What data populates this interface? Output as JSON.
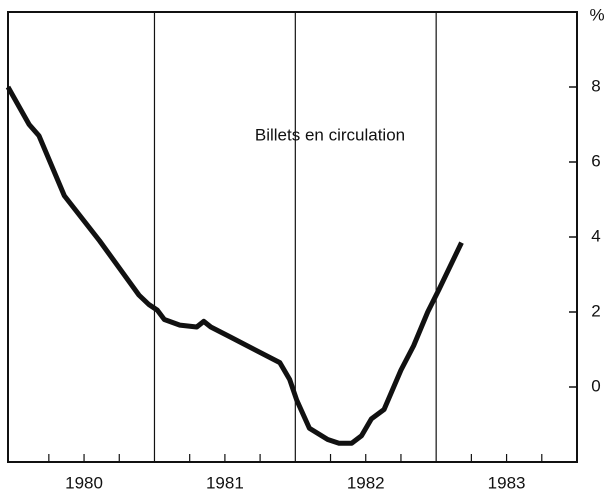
{
  "chart_data": {
    "type": "line",
    "annotation": "Billets en circulation",
    "y_unit": "%",
    "x": [
      1979.96,
      1980.11,
      1980.18,
      1980.36,
      1980.61,
      1980.89,
      1980.96,
      1981.02,
      1981.07,
      1981.18,
      1981.3,
      1981.35,
      1981.4,
      1981.53,
      1981.89,
      1981.96,
      1982.01,
      1982.1,
      1982.23,
      1982.31,
      1982.4,
      1982.47,
      1982.54,
      1982.63,
      1982.75,
      1982.84,
      1982.94,
      1983.02,
      1983.18
    ],
    "values": [
      8.0,
      7.0,
      6.7,
      5.1,
      3.9,
      2.45,
      2.2,
      2.05,
      1.8,
      1.65,
      1.6,
      1.75,
      1.6,
      1.35,
      0.65,
      0.2,
      -0.35,
      -1.1,
      -1.4,
      -1.5,
      -1.5,
      -1.3,
      -0.85,
      -0.6,
      0.45,
      1.1,
      2.0,
      2.6,
      3.85
    ],
    "color": "#111111",
    "xlim": [
      1979.96,
      1984.0
    ],
    "xticks": [
      {
        "value": 1980.5,
        "label": "1980"
      },
      {
        "value": 1981.5,
        "label": "1981"
      },
      {
        "value": 1982.5,
        "label": "1982"
      },
      {
        "value": 1983.5,
        "label": "1983"
      }
    ],
    "xgrid": [
      1981,
      1982,
      1983
    ],
    "xminor_ticks": [
      1980.25,
      1980.5,
      1980.75,
      1981.25,
      1981.5,
      1981.75,
      1982.25,
      1982.5,
      1982.75,
      1983.25,
      1983.5,
      1983.75
    ],
    "ylim": [
      -2,
      10
    ],
    "yticks": [
      0,
      2,
      4,
      6,
      8
    ],
    "grid": "x"
  }
}
